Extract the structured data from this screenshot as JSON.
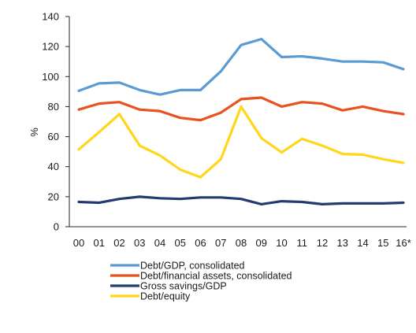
{
  "chart_data": {
    "type": "line",
    "title": "",
    "xlabel": "",
    "ylabel": "%",
    "ylim": [
      0,
      140
    ],
    "yticks": [
      0,
      20,
      40,
      60,
      80,
      100,
      120,
      140
    ],
    "grid": false,
    "legend_position": "bottom-left",
    "categories": [
      "00",
      "01",
      "02",
      "03",
      "04",
      "05",
      "06",
      "07",
      "08",
      "09",
      "10",
      "11",
      "12",
      "13",
      "14",
      "15",
      "16*"
    ],
    "series": [
      {
        "name": "Debt/GDP, consolidated",
        "color": "#5B9BD5",
        "values": [
          90.5,
          95.5,
          96,
          91,
          88,
          91,
          91,
          103.5,
          121,
          125,
          113,
          113.5,
          112,
          110,
          110,
          109.5,
          105
        ]
      },
      {
        "name": "Debt/financial assets, consolidated",
        "color": "#E8521F",
        "values": [
          78,
          82,
          83,
          78,
          77,
          72.5,
          71,
          76,
          85,
          86,
          80,
          83,
          82,
          77.5,
          80,
          77,
          75
        ]
      },
      {
        "name": "Gross savings/GDP",
        "color": "#243A73",
        "values": [
          16.5,
          16,
          18.5,
          20,
          19,
          18.5,
          19.5,
          19.5,
          18.5,
          15,
          17,
          16.5,
          15,
          15.5,
          15.5,
          15.5,
          16
        ]
      },
      {
        "name": "Debt/equity",
        "color": "#FFD619",
        "values": [
          51.5,
          63,
          75,
          54,
          47.5,
          38,
          33,
          45,
          80,
          59,
          49.5,
          58.5,
          54,
          48.5,
          48,
          45,
          42.5
        ]
      }
    ]
  }
}
